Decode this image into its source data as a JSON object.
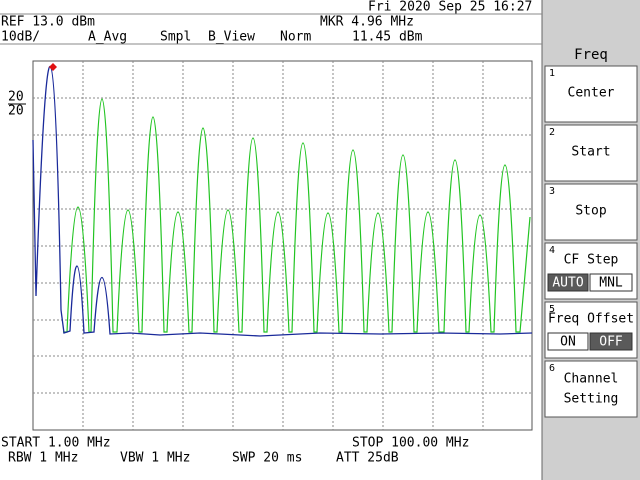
{
  "header": {
    "datetime": "Fri 2020 Sep 25 16:27",
    "ref": "REF 13.0 dBm",
    "marker_freq": "MKR 4.96 MHz",
    "scale": "10dB/",
    "trace_a": "A_Avg",
    "detector": "Smpl",
    "trace_b": "B_View",
    "mode": "Norm",
    "marker_level": "11.45 dBm"
  },
  "left_labels": [
    "20",
    "20"
  ],
  "footer": {
    "start": "START 1.00 MHz",
    "stop": "STOP 100.00 MHz",
    "rbw": "RBW 1 MHz",
    "vbw": "VBW 1 MHz",
    "swp": "SWP 20 ms",
    "att": "ATT 25dB"
  },
  "menu": {
    "title": "Freq",
    "buttons": [
      {
        "number": "1",
        "label": "Center"
      },
      {
        "number": "2",
        "label": "Start"
      },
      {
        "number": "3",
        "label": "Stop"
      },
      {
        "number": "4",
        "label": "CF Step",
        "options": [
          "AUTO",
          "MNL"
        ]
      },
      {
        "number": "5",
        "label": "Freq Offset",
        "options": [
          "ON",
          "OFF"
        ]
      },
      {
        "number": "6",
        "label_lines": [
          "Channel",
          "Setting"
        ]
      }
    ]
  }
}
